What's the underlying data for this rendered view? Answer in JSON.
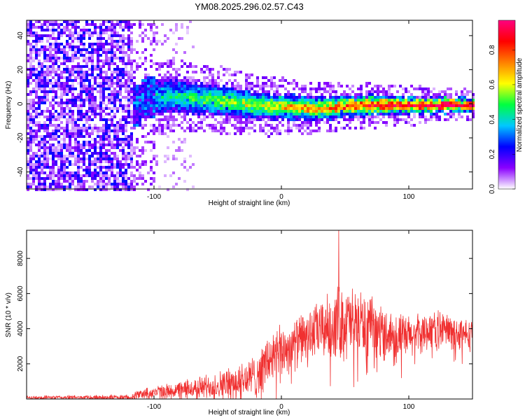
{
  "title": "YM08.2025.296.02.57.C43",
  "colorbar_label": "Normalized spectral amplitude",
  "chart_data": [
    {
      "type": "heatmap",
      "name": "spectrogram",
      "xlabel": "Height of straight line (km)",
      "ylabel": "Frequency (Hz)",
      "xlim": [
        -200,
        150
      ],
      "ylim": [
        -50,
        49
      ],
      "xticks": [
        -100,
        0,
        100
      ],
      "yticks": [
        -40,
        -20,
        0,
        20,
        40
      ],
      "colorbar": {
        "range": [
          0,
          0.97
        ],
        "ticks": [
          0.0,
          0.2,
          0.4,
          0.6,
          0.8
        ],
        "colormap": [
          "#ffffff",
          "#8a00ff",
          "#0000ff",
          "#00c8ff",
          "#00ff40",
          "#ffff00",
          "#ff8000",
          "#ff0000",
          "#ff0080"
        ]
      },
      "ridge": {
        "description_points": [
          [
            -110,
            4
          ],
          [
            -80,
            5
          ],
          [
            -40,
            2
          ],
          [
            -20,
            0
          ],
          [
            0,
            -1
          ],
          [
            30,
            -2
          ],
          [
            60,
            0
          ],
          [
            100,
            0
          ],
          [
            150,
            0
          ]
        ],
        "peak_amplitude": 0.97
      }
    },
    {
      "type": "line",
      "name": "snr",
      "xlabel": "Height of straight line (km)",
      "ylabel": "SNR (10 * v/v)",
      "xlim": [
        -200,
        150
      ],
      "ylim": [
        0,
        9600
      ],
      "xticks": [
        -100,
        0,
        100
      ],
      "yticks": [
        2000,
        4000,
        6000,
        8000
      ],
      "series": [
        {
          "name": "SNR",
          "color": "#f03030",
          "envelope_x": [
            -200,
            -120,
            -110,
            -80,
            -60,
            -40,
            -20,
            -10,
            0,
            10,
            20,
            30,
            40,
            45,
            50,
            60,
            70,
            80,
            90,
            100,
            110,
            120,
            130,
            140,
            150
          ],
          "envelope_mean": [
            80,
            100,
            300,
            500,
            700,
            900,
            1300,
            2200,
            2700,
            3100,
            3600,
            3900,
            4200,
            4400,
            4300,
            4400,
            4100,
            3800,
            3600,
            3500,
            3800,
            4000,
            3900,
            3700,
            3600
          ],
          "envelope_spread": [
            100,
            150,
            300,
            500,
            700,
            900,
            1300,
            1600,
            1500,
            1500,
            1500,
            1700,
            2000,
            2200,
            2200,
            2000,
            1700,
            1500,
            1400,
            1300,
            1100,
            1100,
            1100,
            1000,
            900
          ],
          "peak": {
            "x": 45,
            "y": 9600
          }
        }
      ]
    }
  ]
}
